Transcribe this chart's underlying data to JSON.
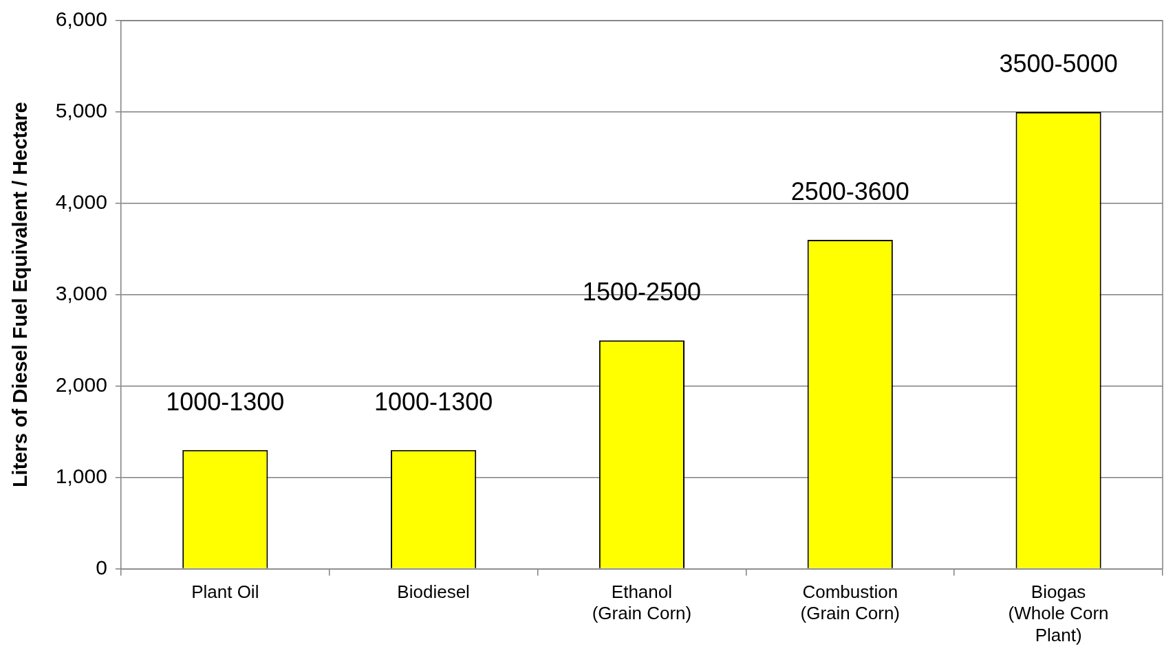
{
  "chart_data": {
    "type": "bar",
    "ylabel": "Liters of Diesel Fuel Equivalent / Hectare",
    "categories": [
      "Plant Oil",
      "Biodiesel",
      "Ethanol (Grain Corn)",
      "Combustion (Grain Corn)",
      "Biogas (Whole Corn Plant)"
    ],
    "values": [
      1300,
      1300,
      2500,
      3600,
      5000
    ],
    "value_labels": [
      "1000-1300",
      "1000-1300",
      "1500-2500",
      "2500-3600",
      "3500-5000"
    ],
    "color": "#ffff00",
    "ylim": [
      0,
      6000
    ],
    "yticks": [
      0,
      {
        "value": 1000,
        "label": "1,000"
      },
      {
        "value": 2000,
        "label": "2,000"
      },
      {
        "value": 3000,
        "label": "3,000"
      },
      {
        "value": 4000,
        "label": "4,000"
      },
      {
        "value": 5000,
        "label": "5,000"
      },
      {
        "value": 6000,
        "label": "6,000"
      }
    ],
    "grid": "y"
  }
}
